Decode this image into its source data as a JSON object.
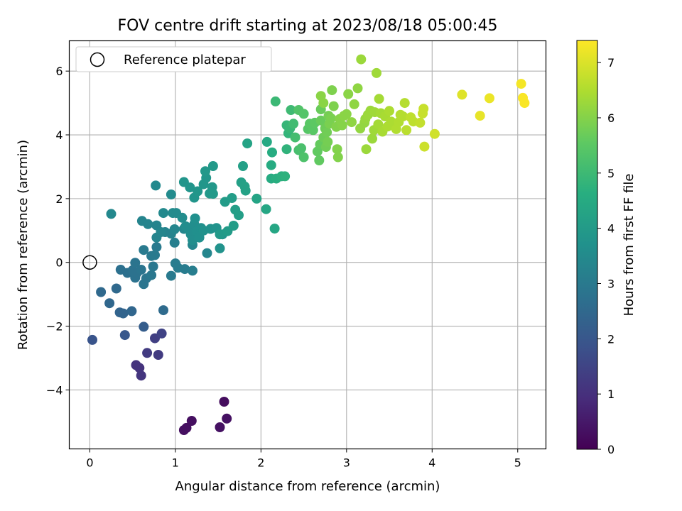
{
  "chart_data": {
    "type": "scatter",
    "title": "FOV centre drift starting at 2023/08/18 05:00:45",
    "xlabel": "Angular distance from reference (arcmin)",
    "ylabel": "Rotation from reference (arcmin)",
    "xlim": [
      -0.24,
      5.33
    ],
    "ylim": [
      -5.85,
      6.95
    ],
    "xticks": [
      0,
      1,
      2,
      3,
      4,
      5
    ],
    "xtick_labels": [
      "0",
      "1",
      "2",
      "3",
      "4",
      "5"
    ],
    "yticks": [
      -4,
      -2,
      0,
      2,
      4,
      6
    ],
    "ytick_labels": [
      "−4",
      "−2",
      "0",
      "2",
      "4",
      "6"
    ],
    "grid": true,
    "legend": {
      "position": "top-left",
      "entries": [
        {
          "label": "Reference platepar",
          "marker": "open-circle"
        }
      ]
    },
    "reference_point": {
      "x": 0,
      "y": 0
    },
    "colorbar": {
      "label": "Hours from first FF file",
      "range": [
        0,
        7.4
      ],
      "ticks": [
        0,
        1,
        2,
        3,
        4,
        5,
        6,
        7
      ],
      "tick_labels": [
        "0",
        "1",
        "2",
        "3",
        "4",
        "5",
        "6",
        "7"
      ],
      "colormap": "viridis"
    },
    "points": [
      [
        1.57,
        -4.37,
        0.25
      ],
      [
        1.1,
        -5.26,
        0.3
      ],
      [
        1.13,
        -5.19,
        0.3
      ],
      [
        1.19,
        -4.97,
        0.3
      ],
      [
        1.52,
        -5.17,
        0.35
      ],
      [
        1.6,
        -4.9,
        0.35
      ],
      [
        0.54,
        -3.22,
        1.1
      ],
      [
        0.58,
        -3.31,
        1.1
      ],
      [
        0.6,
        -3.55,
        1.15
      ],
      [
        0.67,
        -2.84,
        1.3
      ],
      [
        0.8,
        -2.9,
        1.3
      ],
      [
        0.76,
        -2.38,
        1.4
      ],
      [
        0.84,
        -2.23,
        1.5
      ],
      [
        0.03,
        -2.43,
        1.95
      ],
      [
        0.41,
        -2.28,
        2.05
      ],
      [
        0.63,
        -2.02,
        2.2
      ],
      [
        0.35,
        -1.57,
        2.4
      ],
      [
        0.39,
        -1.6,
        2.4
      ],
      [
        0.49,
        -1.53,
        2.45
      ],
      [
        0.23,
        -1.28,
        2.5
      ],
      [
        0.13,
        -0.93,
        2.55
      ],
      [
        0.31,
        -0.82,
        2.55
      ],
      [
        0.86,
        -1.5,
        2.6
      ],
      [
        0.36,
        -0.23,
        2.75
      ],
      [
        0.44,
        -0.33,
        2.75
      ],
      [
        0.5,
        -0.25,
        2.8
      ],
      [
        0.53,
        -0.48,
        2.8
      ],
      [
        0.55,
        -0.33,
        2.8
      ],
      [
        0.53,
        -0.01,
        2.85
      ],
      [
        0.6,
        -0.23,
        2.85
      ],
      [
        0.63,
        -0.68,
        2.9
      ],
      [
        0.66,
        -0.5,
        2.9
      ],
      [
        0.72,
        -0.4,
        2.95
      ],
      [
        0.74,
        -0.13,
        2.95
      ],
      [
        0.72,
        0.2,
        3.0
      ],
      [
        0.63,
        0.39,
        3.05
      ],
      [
        0.76,
        0.23,
        3.05
      ],
      [
        0.78,
        0.48,
        3.05
      ],
      [
        0.95,
        -0.42,
        3.05
      ],
      [
        1.0,
        -0.03,
        3.1
      ],
      [
        1.03,
        -0.17,
        3.1
      ],
      [
        1.11,
        -0.21,
        3.1
      ],
      [
        1.2,
        -0.26,
        3.15
      ],
      [
        0.99,
        0.62,
        3.2
      ],
      [
        0.88,
        0.95,
        3.3
      ],
      [
        0.95,
        0.9,
        3.3
      ],
      [
        0.61,
        1.3,
        3.35
      ],
      [
        0.68,
        1.2,
        3.35
      ],
      [
        0.78,
        1.16,
        3.35
      ],
      [
        0.78,
        0.78,
        3.35
      ],
      [
        0.83,
        0.95,
        3.4
      ],
      [
        0.99,
        1.04,
        3.4
      ],
      [
        1.1,
        1.05,
        3.4
      ],
      [
        1.2,
        0.55,
        3.4
      ],
      [
        1.37,
        0.29,
        3.4
      ],
      [
        0.25,
        1.52,
        3.45
      ],
      [
        0.77,
        2.41,
        3.5
      ],
      [
        0.86,
        1.55,
        3.5
      ],
      [
        0.95,
        2.13,
        3.55
      ],
      [
        0.97,
        1.55,
        3.55
      ],
      [
        1.01,
        1.55,
        3.55
      ],
      [
        1.08,
        1.4,
        3.6
      ],
      [
        1.12,
        1.13,
        3.6
      ],
      [
        1.15,
        1.05,
        3.6
      ],
      [
        1.18,
        0.88,
        3.65
      ],
      [
        1.2,
        0.7,
        3.65
      ],
      [
        1.22,
        1.2,
        3.65
      ],
      [
        1.23,
        1.38,
        3.7
      ],
      [
        1.25,
        0.98,
        3.7
      ],
      [
        1.28,
        0.78,
        3.7
      ],
      [
        1.3,
        1.08,
        3.7
      ],
      [
        1.33,
        1.0,
        3.75
      ],
      [
        1.41,
        1.05,
        3.75
      ],
      [
        1.48,
        1.08,
        3.8
      ],
      [
        1.52,
        0.44,
        3.8
      ],
      [
        1.55,
        0.88,
        3.8
      ],
      [
        1.1,
        2.52,
        3.85
      ],
      [
        1.17,
        2.35,
        3.85
      ],
      [
        1.22,
        2.03,
        3.85
      ],
      [
        1.26,
        2.23,
        3.9
      ],
      [
        1.33,
        2.45,
        3.9
      ],
      [
        1.36,
        2.65,
        3.9
      ],
      [
        1.35,
        2.86,
        3.95
      ],
      [
        1.4,
        2.16,
        3.95
      ],
      [
        1.43,
        2.36,
        3.95
      ],
      [
        1.44,
        3.02,
        4.0
      ],
      [
        1.44,
        2.15,
        4.0
      ],
      [
        1.52,
        0.88,
        4.0
      ],
      [
        1.58,
        1.9,
        4.05
      ],
      [
        1.61,
        0.98,
        4.05
      ],
      [
        1.66,
        2.02,
        4.1
      ],
      [
        1.68,
        1.15,
        4.1
      ],
      [
        1.7,
        1.65,
        4.15
      ],
      [
        1.74,
        1.48,
        4.15
      ],
      [
        1.77,
        2.51,
        4.2
      ],
      [
        1.79,
        3.02,
        4.2
      ],
      [
        1.81,
        2.38,
        4.25
      ],
      [
        1.82,
        2.25,
        4.25
      ],
      [
        1.84,
        3.73,
        4.3
      ],
      [
        1.95,
        2.0,
        4.35
      ],
      [
        2.06,
        1.67,
        4.4
      ],
      [
        2.16,
        1.06,
        4.4
      ],
      [
        2.07,
        3.78,
        4.5
      ],
      [
        2.12,
        3.05,
        4.55
      ],
      [
        2.12,
        2.63,
        4.55
      ],
      [
        2.13,
        3.45,
        4.6
      ],
      [
        2.18,
        2.63,
        4.65
      ],
      [
        2.24,
        2.7,
        4.7
      ],
      [
        2.28,
        2.7,
        4.75
      ],
      [
        2.3,
        3.55,
        4.8
      ],
      [
        2.32,
        4.05,
        4.85
      ],
      [
        2.3,
        4.3,
        4.9
      ],
      [
        2.34,
        4.2,
        4.95
      ],
      [
        2.17,
        5.05,
        5.0
      ],
      [
        2.35,
        4.78,
        5.05
      ],
      [
        2.38,
        4.35,
        5.1
      ],
      [
        2.4,
        3.92,
        5.15
      ],
      [
        2.44,
        3.52,
        5.2
      ],
      [
        2.47,
        3.58,
        5.25
      ],
      [
        2.5,
        3.3,
        5.3
      ],
      [
        2.44,
        4.78,
        5.35
      ],
      [
        2.5,
        4.66,
        5.4
      ],
      [
        2.55,
        4.18,
        5.45
      ],
      [
        2.57,
        4.35,
        5.5
      ],
      [
        2.61,
        4.15,
        5.5
      ],
      [
        2.63,
        4.38,
        5.55
      ],
      [
        2.66,
        3.48,
        5.6
      ],
      [
        2.68,
        3.2,
        5.6
      ],
      [
        2.69,
        3.7,
        5.65
      ],
      [
        2.7,
        4.45,
        5.7
      ],
      [
        2.7,
        4.8,
        5.7
      ],
      [
        2.73,
        3.92,
        5.75
      ],
      [
        2.75,
        4.2,
        5.75
      ],
      [
        2.76,
        3.62,
        5.8
      ],
      [
        2.77,
        4.08,
        5.8
      ],
      [
        2.78,
        3.78,
        5.85
      ],
      [
        2.79,
        4.6,
        5.85
      ],
      [
        2.8,
        4.35,
        5.9
      ],
      [
        2.82,
        4.52,
        5.9
      ],
      [
        2.83,
        5.4,
        5.95
      ],
      [
        2.85,
        4.9,
        5.95
      ],
      [
        2.88,
        4.25,
        6.0
      ],
      [
        2.89,
        3.55,
        6.0
      ],
      [
        2.9,
        3.3,
        6.0
      ],
      [
        2.92,
        4.5,
        6.05
      ],
      [
        2.95,
        4.3,
        6.05
      ],
      [
        2.97,
        4.6,
        6.1
      ],
      [
        3.0,
        4.65,
        6.1
      ],
      [
        3.02,
        5.28,
        6.1
      ],
      [
        2.7,
        5.22,
        6.1
      ],
      [
        2.73,
        5.0,
        6.1
      ],
      [
        3.06,
        4.4,
        6.15
      ],
      [
        3.09,
        4.96,
        6.15
      ],
      [
        3.13,
        5.46,
        6.15
      ],
      [
        3.16,
        4.2,
        6.2
      ],
      [
        3.17,
        6.37,
        6.3
      ],
      [
        3.21,
        4.38,
        6.2
      ],
      [
        3.22,
        4.5,
        6.25
      ],
      [
        3.23,
        3.55,
        6.3
      ],
      [
        3.25,
        4.63,
        6.3
      ],
      [
        3.28,
        4.76,
        6.3
      ],
      [
        3.3,
        3.88,
        6.3
      ],
      [
        3.32,
        4.15,
        6.35
      ],
      [
        3.33,
        4.71,
        6.35
      ],
      [
        3.35,
        5.94,
        6.35
      ],
      [
        3.37,
        4.33,
        6.4
      ],
      [
        3.38,
        5.13,
        6.4
      ],
      [
        3.4,
        4.68,
        6.4
      ],
      [
        3.42,
        4.1,
        6.45
      ],
      [
        3.45,
        4.58,
        6.45
      ],
      [
        3.48,
        4.26,
        6.5
      ],
      [
        3.5,
        4.75,
        6.5
      ],
      [
        3.52,
        4.42,
        6.5
      ],
      [
        3.58,
        4.18,
        6.55
      ],
      [
        3.61,
        4.4,
        6.55
      ],
      [
        3.63,
        4.63,
        6.6
      ],
      [
        3.66,
        4.58,
        6.6
      ],
      [
        3.68,
        5.0,
        6.6
      ],
      [
        3.7,
        4.15,
        6.65
      ],
      [
        3.75,
        4.55,
        6.7
      ],
      [
        3.78,
        4.42,
        6.7
      ],
      [
        3.86,
        4.38,
        6.75
      ],
      [
        3.89,
        4.67,
        6.8
      ],
      [
        3.9,
        4.82,
        6.8
      ],
      [
        3.91,
        3.63,
        6.85
      ],
      [
        4.03,
        4.03,
        6.9
      ],
      [
        4.35,
        5.26,
        7.05
      ],
      [
        4.56,
        4.6,
        7.15
      ],
      [
        4.67,
        5.15,
        7.2
      ],
      [
        5.04,
        5.6,
        7.3
      ],
      [
        5.06,
        5.16,
        7.35
      ],
      [
        5.08,
        5.0,
        7.35
      ]
    ]
  }
}
